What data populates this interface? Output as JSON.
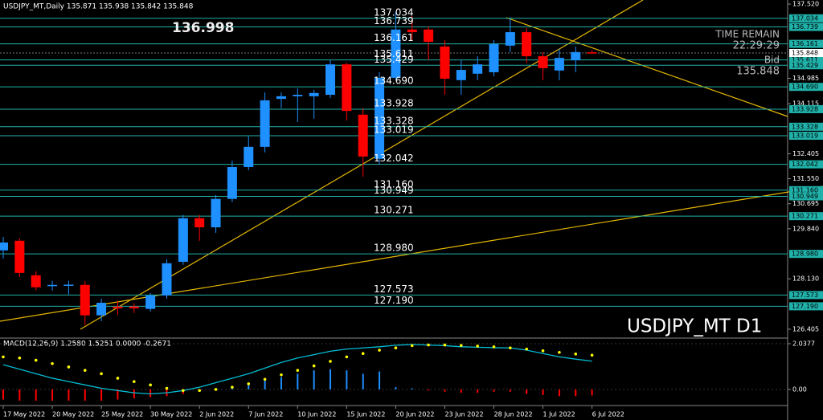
{
  "chart_data": {
    "type": "candlestick",
    "header": "USDJPY_MT,Daily  135.871 135.938 135.842 135.848",
    "big_price": "136.998",
    "time_label": "TIME REMAIN",
    "time_value": "22:29:29",
    "bid_label": "Bid",
    "bid_value": 135.848,
    "symbol_label": "USDJPY_MT D1",
    "bull_color": "#1e90ff",
    "bear_color": "#ff0000",
    "level_color": "#20b2aa",
    "categories": [
      "17 May 2022",
      null,
      null,
      "20 May 2022",
      null,
      null,
      "25 May 2022",
      null,
      null,
      "30 May 2022",
      null,
      null,
      "2 Jun 2022",
      null,
      null,
      "7 Jun 2022",
      null,
      null,
      "10 Jun 2022",
      null,
      null,
      "15 Jun 2022",
      null,
      null,
      "20 Jun 2022",
      null,
      null,
      "23 Jun 2022",
      null,
      null,
      "28 Jun 2022",
      null,
      null,
      "1 Jul 2022",
      null,
      null,
      "6 Jul 2022"
    ],
    "open": [
      129.1,
      129.43,
      128.25,
      127.89,
      127.92,
      127.92,
      126.88,
      127.18,
      127.18,
      127.1,
      127.56,
      128.71,
      130.2,
      129.89,
      130.86,
      131.95,
      132.64,
      134.28,
      134.37,
      134.37,
      134.42,
      135.46,
      133.74,
      132.23,
      135.0,
      136.65,
      136.65,
      136.07,
      134.92,
      135.14,
      135.19,
      136.1,
      136.56,
      135.74,
      135.25,
      135.6,
      135.871
    ],
    "high": [
      129.56,
      129.51,
      128.39,
      128.06,
      128.06,
      128.06,
      127.45,
      127.37,
      127.29,
      127.64,
      128.8,
      130.31,
      130.31,
      130.99,
      132.17,
      133.0,
      134.5,
      134.5,
      134.64,
      134.59,
      135.6,
      135.52,
      133.96,
      135.19,
      137.25,
      137.11,
      136.75,
      136.29,
      135.6,
      135.74,
      136.29,
      137.06,
      136.7,
      135.88,
      135.99,
      136.07,
      135.938
    ],
    "low": [
      128.82,
      128.19,
      127.73,
      127.73,
      127.6,
      126.55,
      126.68,
      126.9,
      126.96,
      127.01,
      127.45,
      128.61,
      129.43,
      129.7,
      130.75,
      131.84,
      132.45,
      133.96,
      133.49,
      133.6,
      134.31,
      133.54,
      131.62,
      132.03,
      134.92,
      136.29,
      135.6,
      134.42,
      134.42,
      134.92,
      135.05,
      135.88,
      135.52,
      134.92,
      134.92,
      135.19,
      135.842
    ],
    "close": [
      129.37,
      128.33,
      127.84,
      127.92,
      127.93,
      126.88,
      127.31,
      127.12,
      127.12,
      127.56,
      128.66,
      130.2,
      129.89,
      130.86,
      131.95,
      132.64,
      134.23,
      134.37,
      134.42,
      134.48,
      135.46,
      133.87,
      132.31,
      135.0,
      136.65,
      136.56,
      136.23,
      134.97,
      135.27,
      135.46,
      136.15,
      136.56,
      135.74,
      135.33,
      135.68,
      135.88,
      135.848
    ],
    "ylim": [
      126.13,
      137.66
    ],
    "yticks": [
      {
        "value": 137.52,
        "label": "137.520"
      },
      134.985,
      134.115,
      132.405,
      {
        "value": 131.55,
        "label": "131.550"
      },
      130.695,
      {
        "value": 129.84,
        "label": "129.840"
      },
      {
        "value": 128.13,
        "label": "128.130"
      },
      126.405
    ],
    "levels": [
      137.034,
      136.739,
      136.161,
      135.611,
      135.429,
      {
        "value": 134.69,
        "label": "134.690"
      },
      133.928,
      133.328,
      133.019,
      132.042,
      {
        "value": 131.16,
        "label": "131.160"
      },
      130.949,
      130.271,
      {
        "value": 128.98,
        "label": "128.980"
      },
      127.573,
      {
        "value": 127.19,
        "label": "127.190"
      }
    ],
    "macd": {
      "label": "MACD(12,26,9) 1.2580 1.5251 0.0000 -0.2671",
      "ylim": [
        -0.54,
        2.18
      ],
      "yticks": [
        2.0377,
        {
          "value": 0,
          "label": "0.00"
        }
      ],
      "histogram": [
        -0.45,
        -0.5,
        -0.5,
        -0.5,
        -0.5,
        -0.5,
        -0.5,
        -0.45,
        -0.4,
        -0.35,
        -0.3,
        -0.2,
        -0.1,
        0.05,
        0.15,
        0.3,
        0.45,
        0.55,
        0.7,
        0.85,
        0.9,
        0.85,
        0.7,
        0.8,
        0.1,
        0.05,
        -0.05,
        -0.1,
        -0.15,
        -0.15,
        -0.1,
        -0.1,
        -0.2,
        -0.25,
        -0.3,
        -0.3,
        -0.2671
      ],
      "signal": [
        1.45,
        1.4,
        1.3,
        1.15,
        1.0,
        0.85,
        0.7,
        0.5,
        0.35,
        0.2,
        0.05,
        -0.05,
        -0.05,
        0.0,
        0.1,
        0.25,
        0.45,
        0.65,
        0.85,
        1.05,
        1.25,
        1.45,
        1.6,
        1.75,
        1.85,
        1.95,
        1.98,
        1.98,
        1.96,
        1.93,
        1.9,
        1.85,
        1.8,
        1.72,
        1.65,
        1.58,
        1.5251
      ],
      "line": [
        1.1,
        0.9,
        0.7,
        0.5,
        0.35,
        0.2,
        0.05,
        -0.05,
        -0.15,
        -0.2,
        -0.15,
        -0.05,
        0.1,
        0.3,
        0.5,
        0.7,
        0.95,
        1.2,
        1.4,
        1.55,
        1.7,
        1.8,
        1.85,
        1.9,
        1.97,
        2.0,
        1.98,
        1.95,
        1.9,
        1.88,
        1.86,
        1.85,
        1.75,
        1.6,
        1.45,
        1.35,
        1.258
      ],
      "signal_color": "#ffff00",
      "line_color": "#00bcd4"
    }
  }
}
